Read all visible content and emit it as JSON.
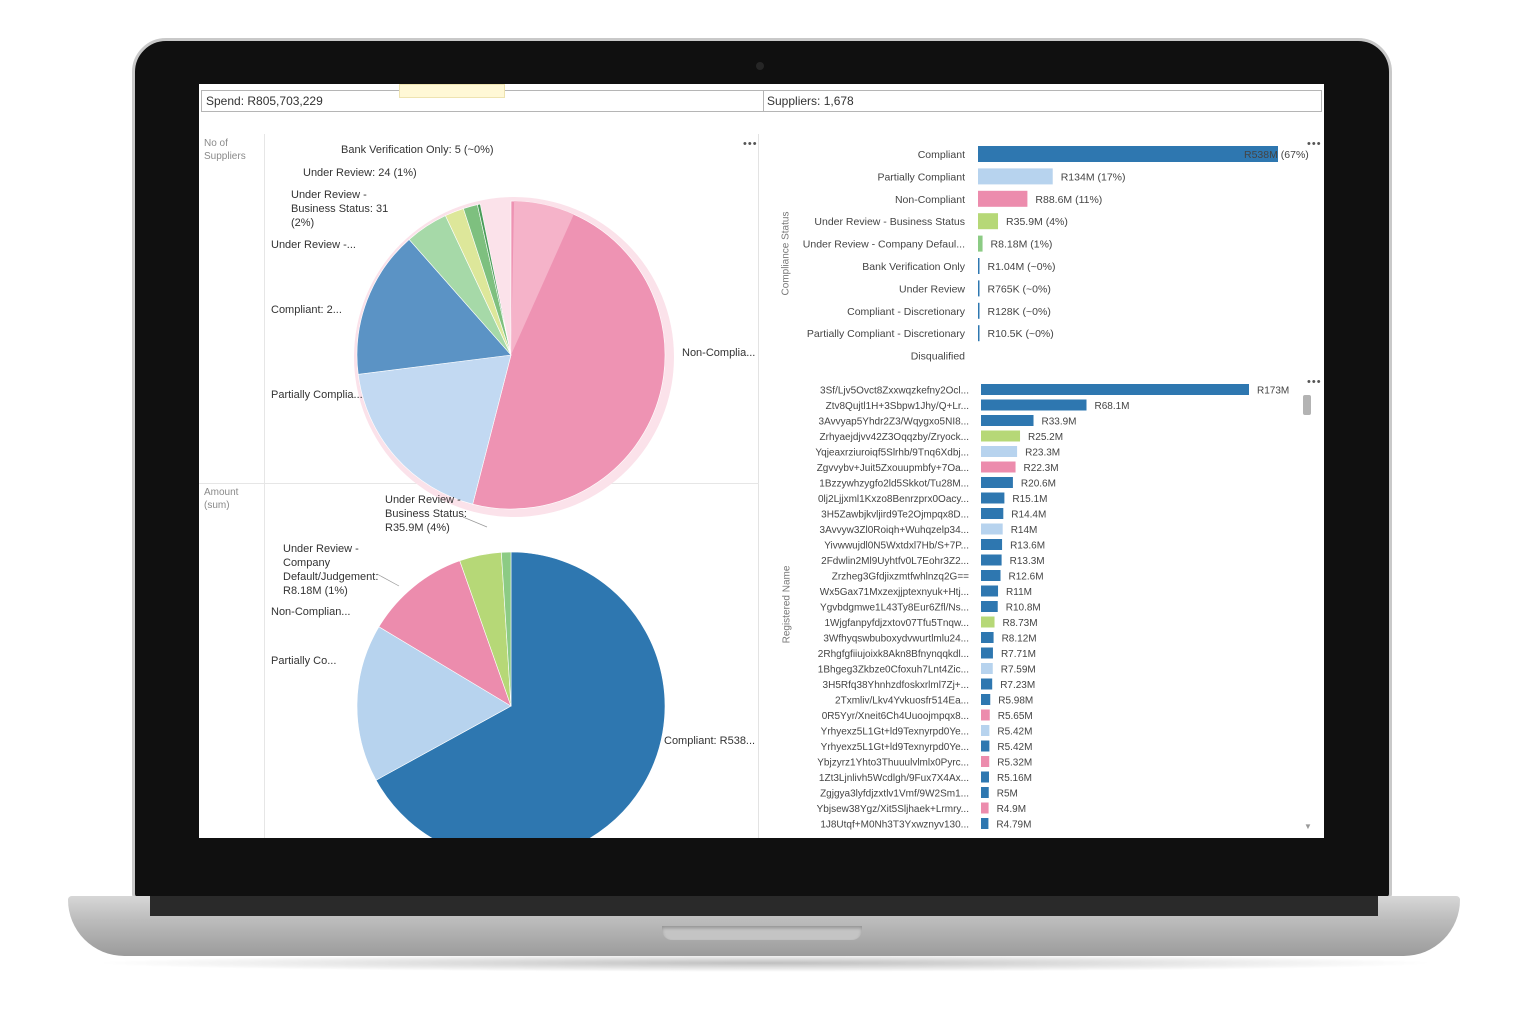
{
  "kpi": {
    "spend": "Spend: R805,703,229",
    "suppliers": "Suppliers:  1,678"
  },
  "menu_dots": "•••",
  "pie_top": {
    "axis_label": "No of\nSuppliers",
    "slices": [
      {
        "label": "Non-Complia...",
        "color": "#ee93b3",
        "share": 0.54
      },
      {
        "label": "Partially Complia...",
        "color": "#c2d9f2",
        "share": 0.19
      },
      {
        "label": "Compliant: 2...",
        "color": "#5b93c5",
        "share": 0.155
      },
      {
        "label": "Under Review -...",
        "color": "#a6d9a8",
        "share": 0.045
      },
      {
        "label": "Under Review -\nBusiness Status: 31\n(2%)",
        "color": "#dde79a",
        "share": 0.02
      },
      {
        "label": "Under Review: 24 (1%)",
        "color": "#7ec07f",
        "share": 0.015
      },
      {
        "label": "Bank Verification Only: 5 (~0%)",
        "color": "#4a9c59",
        "share": 0.003
      }
    ]
  },
  "pie_bottom": {
    "axis_label": "Amount\n(sum)",
    "slices": [
      {
        "label": "Compliant: R538...",
        "color": "#2e77b0",
        "share": 0.67
      },
      {
        "label": "Partially Co...",
        "color": "#b7d3ee",
        "share": 0.166
      },
      {
        "label": "Non-Complian...",
        "color": "#ec8cad",
        "share": 0.11
      },
      {
        "label": "Under Review -\nBusiness Status:\nR35.9M (4%)",
        "color": "#b6d877",
        "share": 0.044
      },
      {
        "label": "Under Review -\nCompany\nDefault/Judgement:\nR8.18M (1%)",
        "color": "#8ccb84",
        "share": 0.01
      }
    ]
  },
  "chart_data": [
    {
      "type": "bar",
      "orientation": "horizontal",
      "ylabel": "Compliance Status",
      "categories": [
        "Compliant",
        "Partially Compliant",
        "Non-Compliant",
        "Under Review - Business Status",
        "Under Review - Company Defaul...",
        "Bank Verification Only",
        "Under Review",
        "Compliant - Discretionary",
        "Partially Compliant - Discretionary",
        "Disqualified"
      ],
      "values": [
        538,
        134,
        88.6,
        35.9,
        8.18,
        1.04,
        0.765,
        0.128,
        0.0105,
        0
      ],
      "value_labels": [
        "R538M (67%)",
        "R134M (17%)",
        "R88.6M (11%)",
        "R35.9M (4%)",
        "R8.18M (1%)",
        "R1.04M (~0%)",
        "R765K (~0%)",
        "R128K (~0%)",
        "R10.5K (~0%)",
        ""
      ],
      "colors": [
        "#2e77b0",
        "#b7d3ee",
        "#ec8cad",
        "#b6d877",
        "#8ccb84",
        "#2e77b0",
        "#2e77b0",
        "#2e77b0",
        "#2e77b0",
        "#2e77b0"
      ],
      "xlim": [
        0,
        538
      ]
    },
    {
      "type": "bar",
      "orientation": "horizontal",
      "ylabel": "Registered Name",
      "categories": [
        "3Sf/Ljv5Ovct8Zxxwqzkefny2Ocl...",
        "Ztv8Qujtl1H+3Sbpw1Jhy/Q+Lr...",
        "3Avvyap5Yhdr2Z3/Wqygxo5NI8...",
        "Zrhyaejdjvv42Z3Oqqzby/Zryock...",
        "Yqjeaxrziuroiqf5Slrhb/9Tnq6Xdbj...",
        "Zgvvybv+Juit5Zxouupmbfy+7Oa...",
        "1Bzzywhzygfo2ld5Skkot/Tu28M...",
        "0lj2Ljjxml1Kxzo8Benrzprx0Oacy...",
        "3H5Zawbjkvljird9Te2Ojmpqx8D...",
        "3Avvyw3Zl0Roiqh+Wuhqzelp34...",
        "Yivwwujdl0N5Wxtdxl7Hb/S+7P...",
        "2Fdwlin2Ml9Uyhtfv0L7Eohr3Z2...",
        "Zrzheg3Gfdjixzmtfwhlnzq2G==",
        "Wx5Gax71Mxzexjjptexnyuk+Htj...",
        "Ygvbdgmwe1L43Ty8Eur6Zfl/Ns...",
        "1Wjgfanpyfdjzxtov07Tfu5Tnqw...",
        "3Wfhyqswbuboxydvwurtlmlu24...",
        "2Rhgfgfiiujoixk8Akn8Bfnynqqkdl...",
        "1Bhgeg3Zkbze0Cfoxuh7Lnt4Zic...",
        "3H5Rfq38Yhnhzdfoskxrlml7Zj+...",
        "2Txmliv/Lkv4Yvkuosfr514Ea...",
        "0R5Yyr/Xneit6Ch4Uuoojmpqx8...",
        "Yrhyexz5L1Gt+ld9Texnyrpd0Ye...",
        "Yrhyexz5L1Gt+ld9Texnyrpd0Ye...",
        "Ybjzyrz1Yhto3Thuuulvlmlx0Pyrc...",
        "1Zt3Ljnlivh5Wcdlgh/9Fux7X4Ax...",
        "Zgjgya3lyfdjzxtlv1Vmf/9W2Sm1...",
        "Ybjsew38Ygz/Xit5Sljhaek+Lrmry...",
        "1J8Utqf+M0Nh3T3Yxwznyv130..."
      ],
      "values": [
        173,
        68.1,
        33.9,
        25.2,
        23.3,
        22.3,
        20.6,
        15.1,
        14.4,
        14,
        13.6,
        13.3,
        12.6,
        11,
        10.8,
        8.73,
        8.12,
        7.71,
        7.59,
        7.23,
        5.98,
        5.65,
        5.42,
        5.42,
        5.32,
        5.16,
        5,
        4.9,
        4.79
      ],
      "value_labels": [
        "R173M",
        "R68.1M",
        "R33.9M",
        "R25.2M",
        "R23.3M",
        "R22.3M",
        "R20.6M",
        "R15.1M",
        "R14.4M",
        "R14M",
        "R13.6M",
        "R13.3M",
        "R12.6M",
        "R11M",
        "R10.8M",
        "R8.73M",
        "R8.12M",
        "R7.71M",
        "R7.59M",
        "R7.23M",
        "R5.98M",
        "R5.65M",
        "R5.42M",
        "R5.42M",
        "R5.32M",
        "R5.16M",
        "R5M",
        "R4.9M",
        "R4.79M"
      ],
      "colors": [
        "#2e77b0",
        "#2e77b0",
        "#2e77b0",
        "#b6d877",
        "#b7d3ee",
        "#ec8cad",
        "#2e77b0",
        "#2e77b0",
        "#2e77b0",
        "#b7d3ee",
        "#2e77b0",
        "#2e77b0",
        "#2e77b0",
        "#2e77b0",
        "#2e77b0",
        "#b6d877",
        "#2e77b0",
        "#2e77b0",
        "#b7d3ee",
        "#2e77b0",
        "#2e77b0",
        "#ec8cad",
        "#b7d3ee",
        "#2e77b0",
        "#ec8cad",
        "#2e77b0",
        "#2e77b0",
        "#ec8cad",
        "#2e77b0"
      ],
      "xlim": [
        0,
        173
      ]
    }
  ]
}
